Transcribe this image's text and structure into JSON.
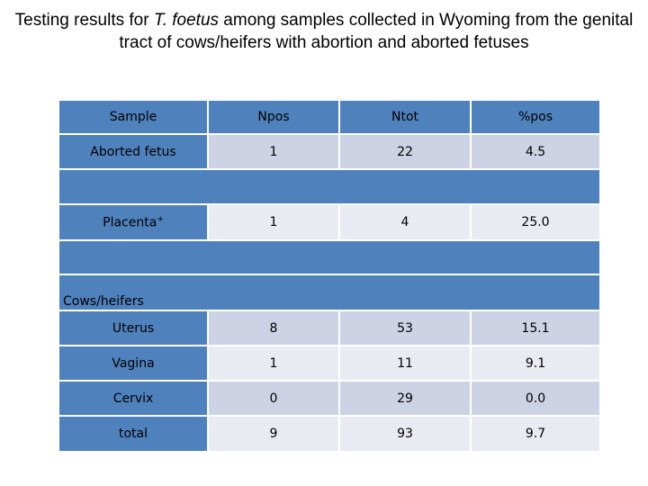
{
  "title": {
    "before": "Testing results for ",
    "species": "T. foetus",
    "after": " among samples collected in Wyoming from the genital tract of cows/heifers with abortion and aborted fetuses"
  },
  "table": {
    "headers": [
      "Sample",
      "Npos",
      "Ntot",
      "%pos"
    ],
    "aborted": {
      "sample": "Aborted fetus",
      "npos": "1",
      "ntot": "22",
      "pct": "4.5"
    },
    "placenta": {
      "sample": "Placenta",
      "sup": "+",
      "npos": "1",
      "ntot": "4",
      "pct": "25.0"
    },
    "group_label": "Cows/heifers",
    "rows": [
      {
        "sample": "Uterus",
        "npos": "8",
        "ntot": "53",
        "pct": "15.1"
      },
      {
        "sample": "Vagina",
        "npos": "1",
        "ntot": "11",
        "pct": "9.1"
      },
      {
        "sample": "Cervix",
        "npos": "0",
        "ntot": "29",
        "pct": "0.0"
      },
      {
        "sample": "total",
        "npos": "9",
        "ntot": "93",
        "pct": "9.7"
      }
    ]
  },
  "colors": {
    "header_blue": "#4f81bd",
    "cell_dark": "#cdd3e4",
    "cell_light": "#e8ebf2"
  }
}
